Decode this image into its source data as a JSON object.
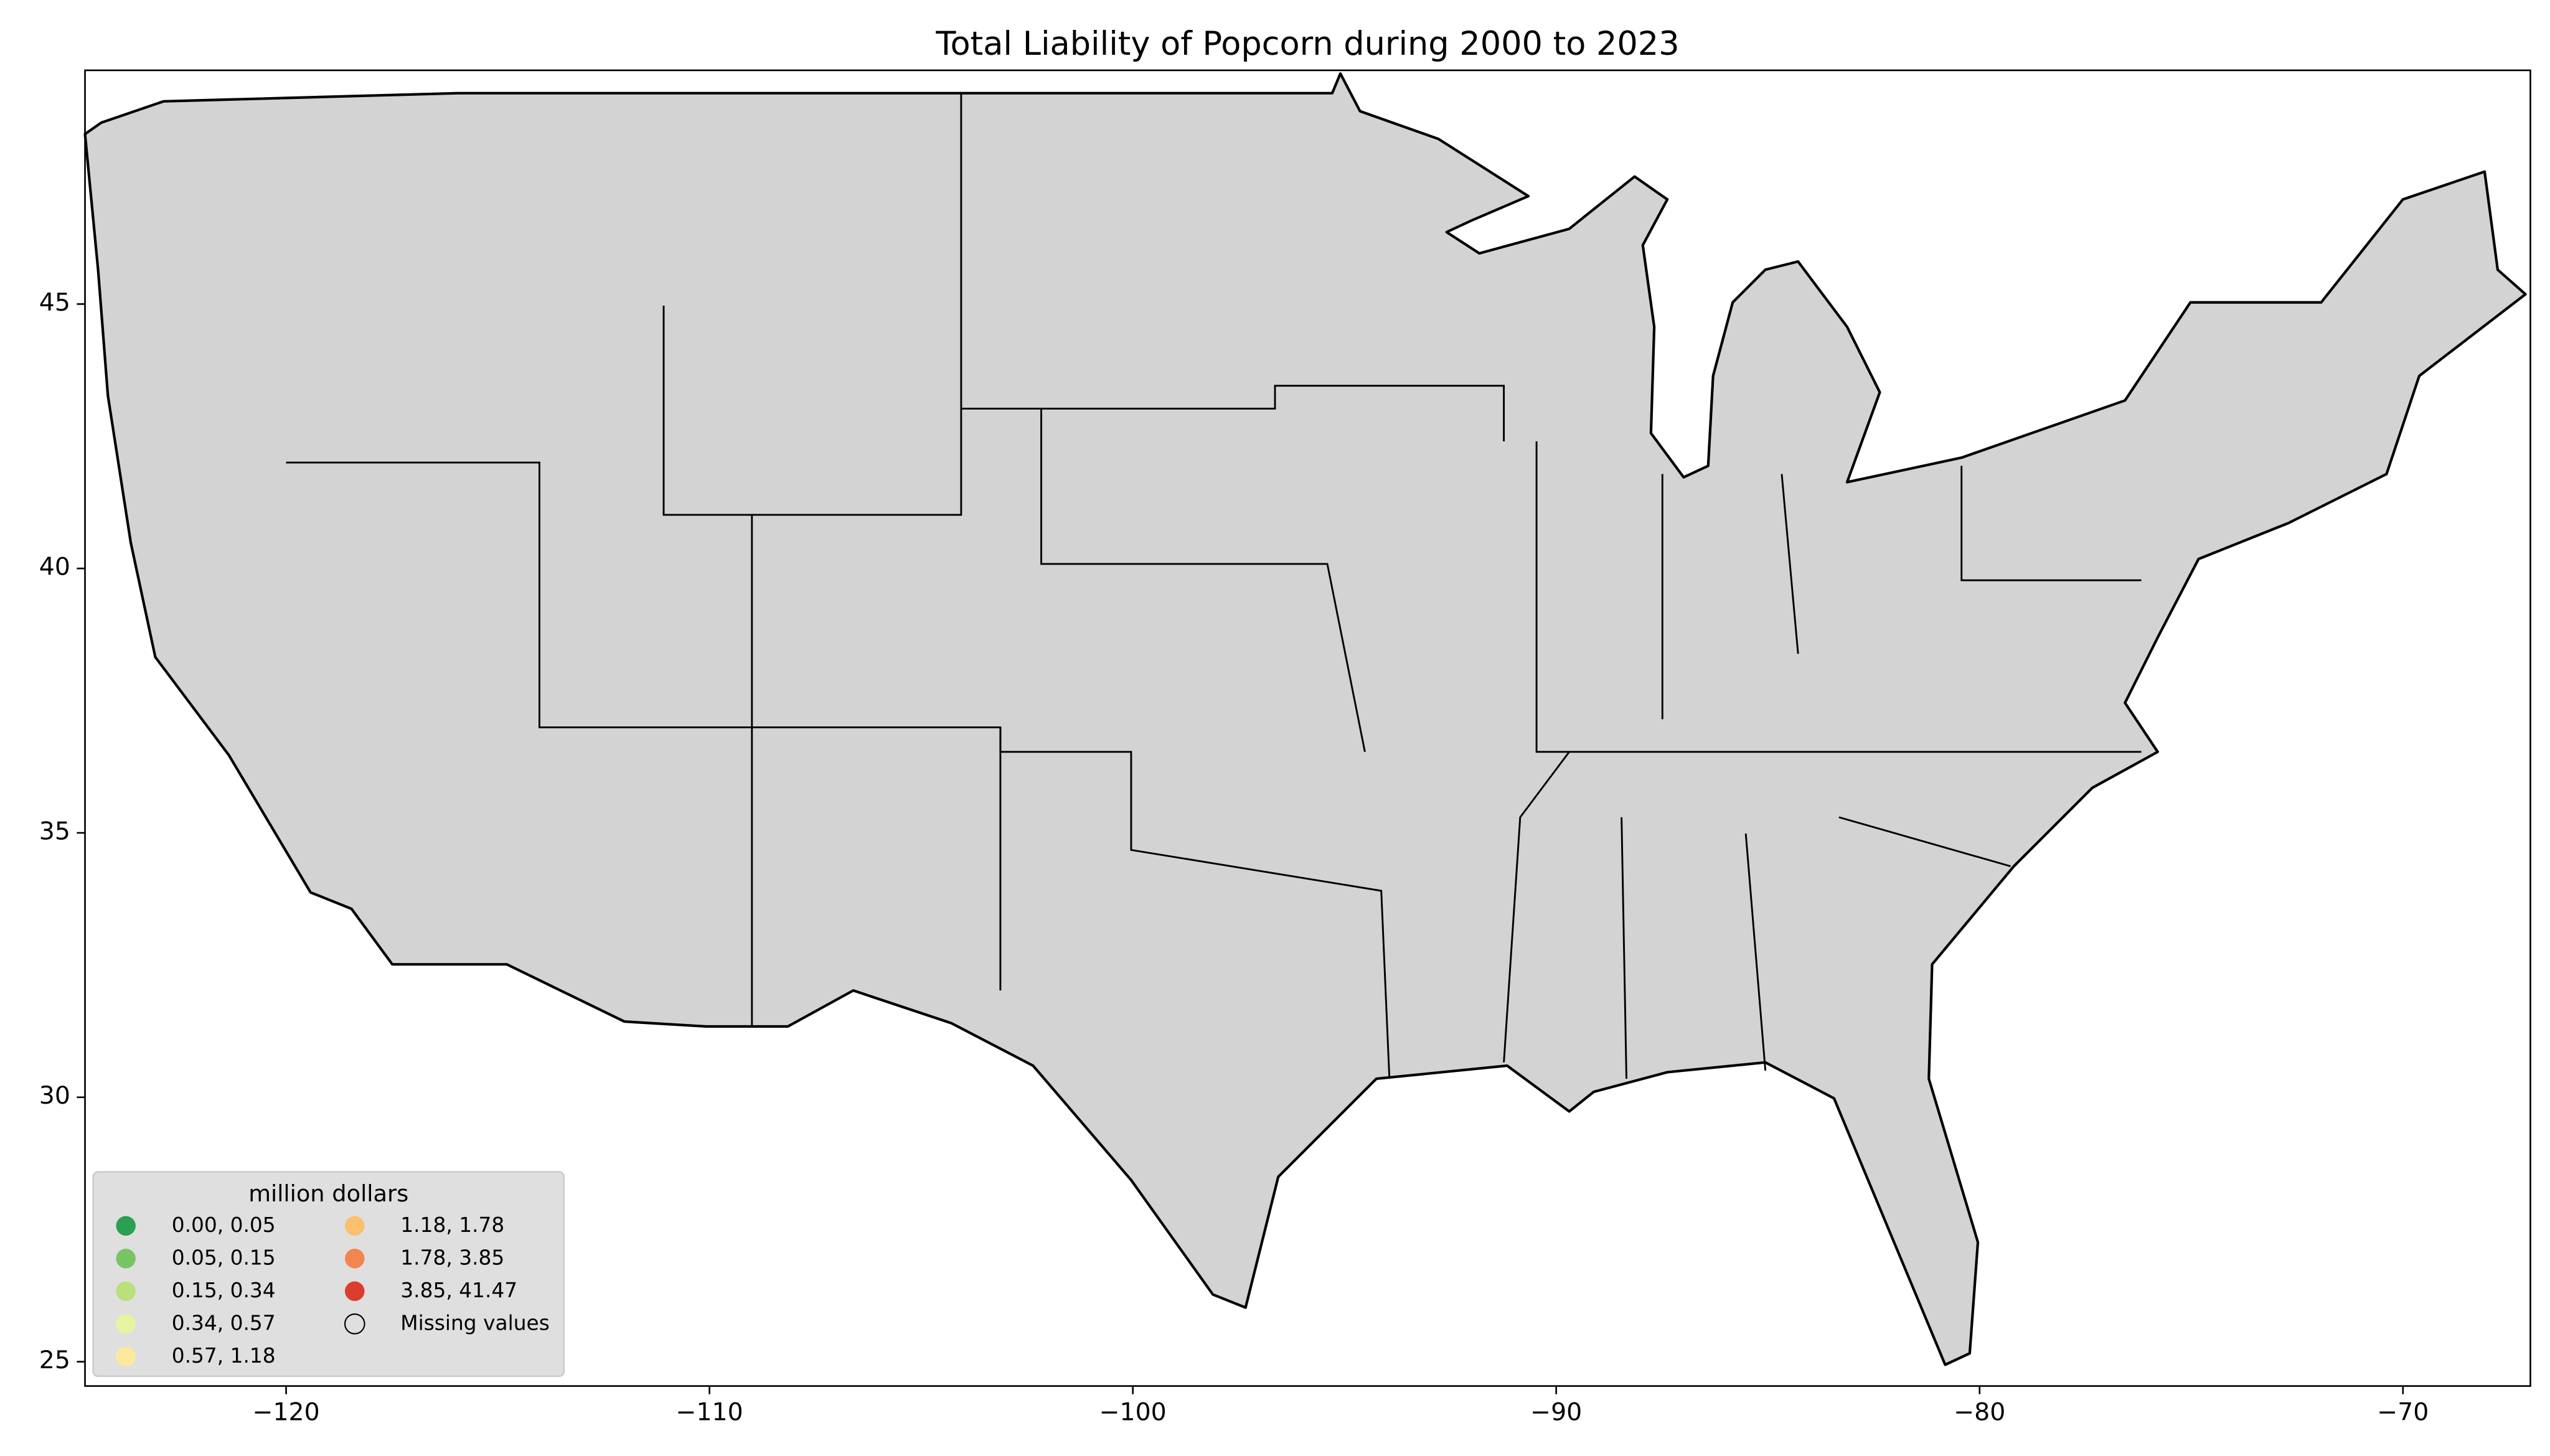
{
  "chart_data": {
    "type": "choropleth",
    "title": "Total Liability of Popcorn during 2000 to 2023",
    "xlim": [
      -124.75,
      -66.99
    ],
    "ylim": [
      24.54,
      49.42
    ],
    "xticks": [
      {
        "value": -120,
        "label": "−120"
      },
      {
        "value": -110,
        "label": "−110"
      },
      {
        "value": -100,
        "label": "−100"
      },
      {
        "value": -90,
        "label": "−90"
      },
      {
        "value": -80,
        "label": "−80"
      },
      {
        "value": -70,
        "label": "−70"
      }
    ],
    "yticks": [
      25,
      30,
      35,
      40,
      45
    ],
    "grid": false,
    "legend": {
      "title": "million dollars",
      "position": "lower left",
      "entries": [
        {
          "label": "0.00,  0.05",
          "color": "#2b9f52"
        },
        {
          "label": "0.05,  0.15",
          "color": "#78c464"
        },
        {
          "label": "0.15,  0.34",
          "color": "#b9e07a"
        },
        {
          "label": "0.34,  0.57",
          "color": "#e6f4a2"
        },
        {
          "label": "0.57,  1.18",
          "color": "#fde99c"
        },
        {
          "label": "1.18,  1.78",
          "color": "#fbbf6e"
        },
        {
          "label": "1.78,  3.85",
          "color": "#f3854f"
        },
        {
          "label": "3.85, 41.47",
          "color": "#dc3d2c"
        },
        {
          "label": "Missing values",
          "color": "none"
        }
      ]
    }
  }
}
